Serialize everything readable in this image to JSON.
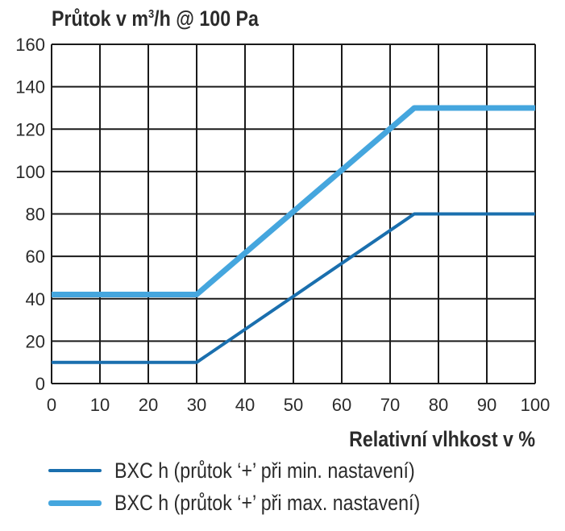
{
  "chart_data": {
    "type": "line",
    "title_prefix": "Průtok v m",
    "title_sup": "3",
    "title_suffix": "/h @ 100 Pa",
    "xlabel": "Relativní vlhkost v %",
    "ylabel": "",
    "xlim": [
      0,
      100
    ],
    "ylim": [
      0,
      160
    ],
    "xticks": [
      0,
      10,
      20,
      30,
      40,
      50,
      60,
      70,
      80,
      90,
      100
    ],
    "yticks": [
      0,
      20,
      40,
      60,
      80,
      100,
      120,
      140,
      160
    ],
    "grid": true,
    "legend_position": "bottom",
    "series": [
      {
        "name": "BXC h (průtok ‘+’ při min. nastavení)",
        "color": "#1a6fae",
        "x": [
          0,
          30,
          75,
          100
        ],
        "y": [
          10,
          10,
          80,
          80
        ]
      },
      {
        "name": "BXC h (průtok ‘+’ při max. nastavení)",
        "color": "#45a6de",
        "x": [
          0,
          30,
          75,
          100
        ],
        "y": [
          42,
          42,
          130,
          130
        ]
      }
    ]
  }
}
